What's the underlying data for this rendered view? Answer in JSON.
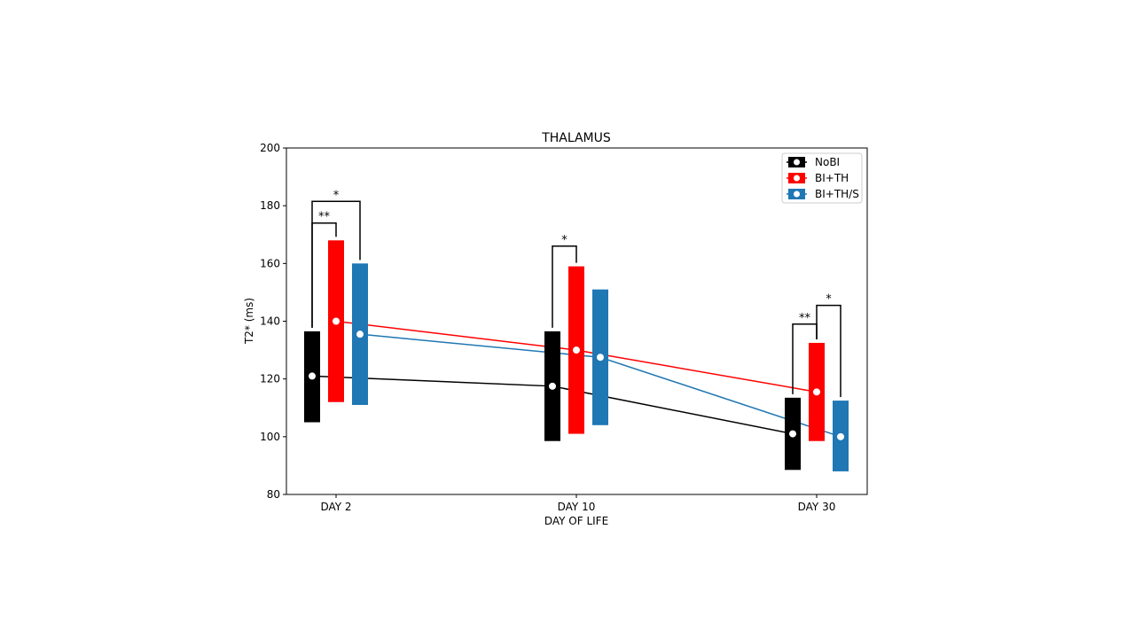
{
  "chart_data": {
    "type": "range-bar",
    "title": "THALAMUS",
    "xlabel": "DAY OF LIFE",
    "ylabel": "T2* (ms)",
    "categories": [
      "DAY 2",
      "DAY 10",
      "DAY 30"
    ],
    "ylim": [
      80,
      200
    ],
    "yticks": [
      80,
      100,
      120,
      140,
      160,
      180,
      200
    ],
    "grid": false,
    "legend_position": "top-right",
    "series": [
      {
        "name": "NoBI",
        "color": "#000000",
        "means": [
          121,
          117.5,
          101
        ],
        "ranges": [
          [
            105,
            136.5
          ],
          [
            98.5,
            136.5
          ],
          [
            88.5,
            113.5
          ]
        ]
      },
      {
        "name": "BI+TH",
        "color": "#ff0000",
        "means": [
          140,
          130,
          115.5
        ],
        "ranges": [
          [
            112,
            168
          ],
          [
            101,
            159
          ],
          [
            98.5,
            132.5
          ]
        ]
      },
      {
        "name": "BI+TH/S",
        "color": "#1f77b4",
        "means": [
          135.5,
          127.5,
          100
        ],
        "ranges": [
          [
            111,
            160
          ],
          [
            104,
            151
          ],
          [
            88,
            112.5
          ]
        ]
      }
    ],
    "significance": [
      {
        "category": "DAY 2",
        "from": "NoBI",
        "to": "BI+TH",
        "label": "**"
      },
      {
        "category": "DAY 2",
        "from": "NoBI",
        "to": "BI+TH/S",
        "label": "*"
      },
      {
        "category": "DAY 10",
        "from": "NoBI",
        "to": "BI+TH",
        "label": "*"
      },
      {
        "category": "DAY 30",
        "from": "NoBI",
        "to": "BI+TH",
        "label": "**"
      },
      {
        "category": "DAY 30",
        "from": "BI+TH",
        "to": "BI+TH/S",
        "label": "*"
      }
    ]
  }
}
